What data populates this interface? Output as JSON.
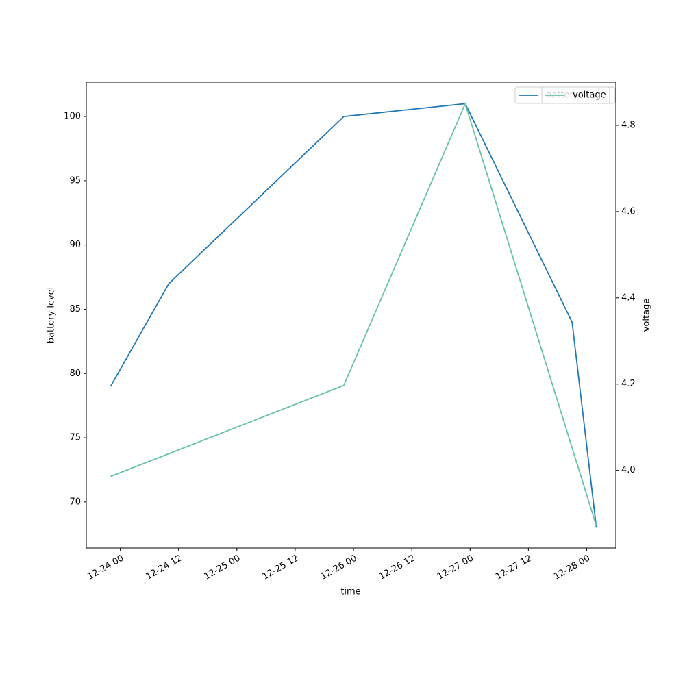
{
  "chart_data": {
    "type": "line",
    "xlabel": "time",
    "ylabel": "battery level",
    "y2label": "voltage",
    "xlim": [
      "12-23 17",
      "12-28 06"
    ],
    "xticks": [
      "12-24 00",
      "12-24 12",
      "12-25 00",
      "12-25 12",
      "12-26 00",
      "12-26 12",
      "12-27 00",
      "12-27 12",
      "12-28 00"
    ],
    "ylim": [
      66.42,
      102.67
    ],
    "yticks": [
      70,
      75,
      80,
      85,
      90,
      95,
      100
    ],
    "y2lim": [
      3.82,
      4.9
    ],
    "y2ticks": [
      {
        "value": 4,
        "label": "4.0"
      },
      4.2,
      4.4,
      4.6,
      4.8
    ],
    "legend": "upper right",
    "series": [
      {
        "name": "battery",
        "color": "#1f77b4",
        "x": [
          "12-23 22",
          "12-24 10",
          "12-25 22",
          "12-26 23",
          "12-27 21",
          "12-28 02"
        ],
        "values": [
          79,
          87,
          100,
          101,
          84,
          68
        ]
      },
      {
        "name": "voltage",
        "color": "#66c2a5",
        "axis": "y2",
        "x": [
          "12-23 22",
          "12-25 22",
          "12-26 23",
          "12-28 02"
        ],
        "values": [
          3.986,
          4.197,
          4.85,
          3.871
        ]
      }
    ]
  }
}
